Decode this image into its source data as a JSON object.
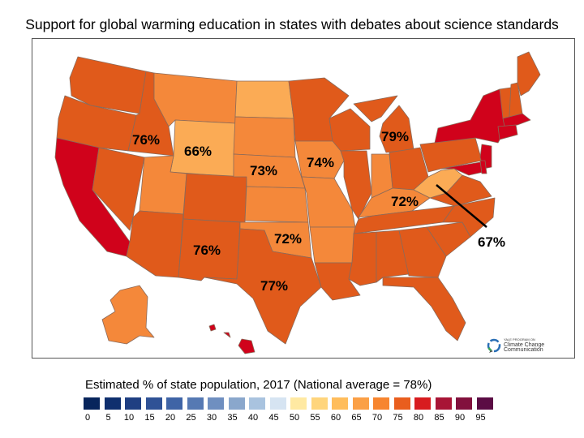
{
  "title": "Support for global warming education in states with debates about science standards",
  "legend": {
    "title": "Estimated % of state population, 2017 (National average = 78%)",
    "ticks": [
      "0",
      "5",
      "10",
      "15",
      "20",
      "25",
      "30",
      "35",
      "40",
      "45",
      "50",
      "55",
      "60",
      "65",
      "70",
      "75",
      "80",
      "85",
      "90",
      "95"
    ],
    "colors": [
      "#08255c",
      "#0f2f6e",
      "#1f3f82",
      "#2f5296",
      "#3f64a6",
      "#5679b3",
      "#6f8fc0",
      "#8aa7cc",
      "#a9c3df",
      "#d6e4f2",
      "#ffe9a2",
      "#ffd57c",
      "#ffbd5c",
      "#fba046",
      "#f7852f",
      "#e95e1e",
      "#d81c1f",
      "#a81536",
      "#82113d",
      "#5b0c44"
    ]
  },
  "labels": {
    "idaho": "76%",
    "wyoming": "66%",
    "nebraska": "73%",
    "iowa": "74%",
    "michigan": "79%",
    "kentucky": "72%",
    "west_virginia": "67%",
    "new_mexico": "76%",
    "oklahoma": "72%",
    "texas": "77%"
  },
  "logo": {
    "line1": "YALE PROGRAM ON",
    "line2": "Climate Change",
    "line3": "Communication"
  },
  "colors": {
    "deep_red": "#d0021b",
    "red_orange": "#e05a1b",
    "orange": "#f4883a",
    "light_orange": "#fbab55",
    "border": "#8a6a5a"
  }
}
